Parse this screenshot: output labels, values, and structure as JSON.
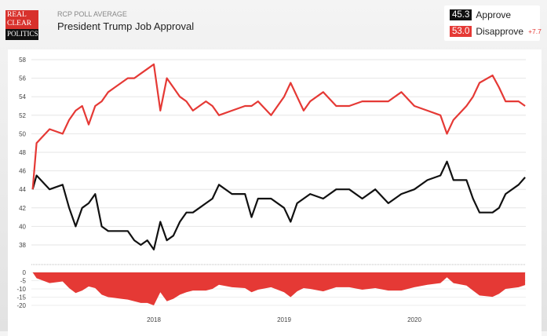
{
  "header": {
    "logo_text": [
      "REAL",
      "CLEAR",
      "POLITICS"
    ],
    "subtitle": "RCP POLL AVERAGE",
    "title": "President Trump Job Approval"
  },
  "legend": {
    "approve": {
      "value": "45.3",
      "label": "Approve",
      "color": "#111111"
    },
    "disapprove": {
      "value": "53.0",
      "label": "Disapprove",
      "color": "#e53935"
    },
    "spread": "+7.7"
  },
  "chart_data": {
    "type": "line",
    "title": "President Trump Job Approval",
    "yticks": [
      "58",
      "56",
      "54",
      "52",
      "50",
      "48",
      "46",
      "44",
      "42",
      "40",
      "38"
    ],
    "ylim": [
      37,
      58
    ],
    "spread_ticks": [
      "0",
      "-5",
      "-10",
      "-15",
      "-20"
    ],
    "spread_ylim": [
      -20,
      0
    ],
    "xticks": [
      "2018",
      "2019",
      "2020"
    ],
    "grid": true,
    "x": [
      2017.07,
      2017.1,
      2017.2,
      2017.3,
      2017.35,
      2017.4,
      2017.45,
      2017.5,
      2017.55,
      2017.6,
      2017.65,
      2017.7,
      2017.75,
      2017.8,
      2017.85,
      2017.9,
      2017.95,
      2018.0,
      2018.05,
      2018.1,
      2018.15,
      2018.2,
      2018.25,
      2018.3,
      2018.35,
      2018.4,
      2018.45,
      2018.5,
      2018.6,
      2018.7,
      2018.75,
      2018.8,
      2018.9,
      2019.0,
      2019.05,
      2019.1,
      2019.15,
      2019.2,
      2019.3,
      2019.4,
      2019.5,
      2019.6,
      2019.7,
      2019.8,
      2019.9,
      2020.0,
      2020.1,
      2020.2,
      2020.25,
      2020.3,
      2020.4,
      2020.45,
      2020.5,
      2020.6,
      2020.65,
      2020.7,
      2020.8,
      2020.85
    ],
    "series": [
      {
        "name": "Approve",
        "color": "#111111",
        "values": [
          44,
          45.5,
          44,
          44.5,
          42,
          40,
          42,
          42.5,
          43.5,
          40,
          39.5,
          39.5,
          39.5,
          39.5,
          38.5,
          38,
          38.5,
          37.5,
          40.5,
          38.5,
          39,
          40.5,
          41.5,
          41.5,
          42,
          42.5,
          43,
          44.5,
          43.5,
          43.5,
          41,
          43,
          43,
          42,
          40.5,
          42.5,
          43,
          43.5,
          43,
          44,
          44,
          43,
          44,
          42.5,
          43.5,
          44,
          45,
          45.5,
          47,
          45,
          45,
          43,
          41.5,
          41.5,
          42,
          43.5,
          44.5,
          45.3
        ]
      },
      {
        "name": "Disapprove",
        "color": "#e53935",
        "values": [
          44,
          49,
          50.5,
          50,
          51.5,
          52.5,
          53,
          51,
          53,
          53.5,
          54.5,
          55,
          55.5,
          56,
          56,
          56.5,
          57,
          57.5,
          52.5,
          56,
          55,
          54,
          53.5,
          52.5,
          53,
          53.5,
          53,
          52,
          52.5,
          53,
          53,
          53.5,
          52,
          54,
          55.5,
          54,
          52.5,
          53.5,
          54.5,
          53,
          53,
          53.5,
          53.5,
          53.5,
          54.5,
          53,
          52.5,
          52,
          50,
          51.5,
          53,
          54,
          55.5,
          56.3,
          55,
          53.5,
          53.5,
          53.0
        ]
      }
    ]
  }
}
